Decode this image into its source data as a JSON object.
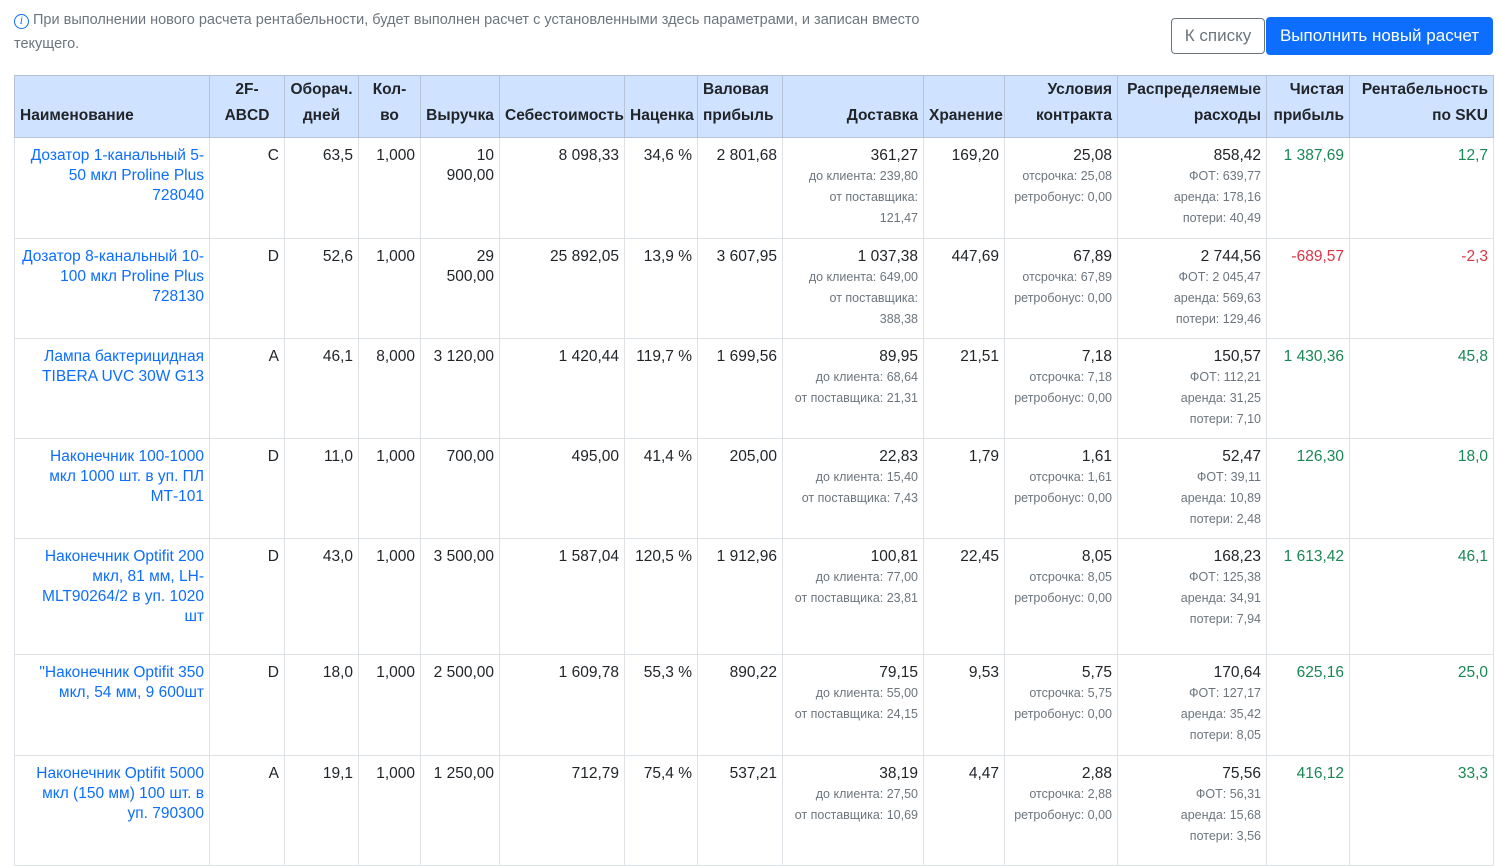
{
  "header": {
    "info_text": "При выполнении нового расчета рентабельности, будет выполнен расчет с установленными здесь параметрами, и записан вместо текущего.",
    "info_icon": "info-circle-icon",
    "btn_list": "К списку",
    "btn_run": "Выполнить новый расчет",
    "accent_color": "#0d6efd"
  },
  "columns": [
    "Наименование",
    "2F-ABCD",
    "Оборач. дней",
    "Кол-во",
    "Выручка",
    "Себестоимость",
    "Наценка",
    "Валовая прибыль",
    "Доставка",
    "Хранение",
    "Условия контракта",
    "Распределяемые расходы",
    "Чистая прибыль",
    "Рентабельность по SKU"
  ],
  "rows": [
    {
      "name": "Дозатор 1-канальный 5-50 мкл Proline Plus 728040",
      "abcd": "C",
      "turnover": "63,5",
      "qty": "1,000",
      "revenue": "10 900,00",
      "cost": "8 098,33",
      "markup": "34,6 %",
      "gross": "2 801,68",
      "delivery": "361,27",
      "delivery_client": "до клиента: 239,80",
      "delivery_supplier": "от поставщика: 121,47",
      "storage": "169,20",
      "contract": "25,08",
      "contract_delay": "отсрочка: 25,08",
      "contract_bonus": "ретробонус: 0,00",
      "dist": "858,42",
      "dist_fot": "ФОТ: 639,77",
      "dist_rent": "аренда: 178,16",
      "dist_loss": "потери: 40,49",
      "net": "1 387,69",
      "net_sign": "pos",
      "rent": "12,7"
    },
    {
      "name": "Дозатор 8-канальный 10-100 мкл Proline Plus 728130",
      "abcd": "D",
      "turnover": "52,6",
      "qty": "1,000",
      "revenue": "29 500,00",
      "cost": "25 892,05",
      "markup": "13,9 %",
      "gross": "3 607,95",
      "delivery": "1 037,38",
      "delivery_client": "до клиента: 649,00",
      "delivery_supplier": "от поставщика: 388,38",
      "storage": "447,69",
      "contract": "67,89",
      "contract_delay": "отсрочка: 67,89",
      "contract_bonus": "ретробонус: 0,00",
      "dist": "2 744,56",
      "dist_fot": "ФОТ: 2 045,47",
      "dist_rent": "аренда: 569,63",
      "dist_loss": "потери: 129,46",
      "net": "-689,57",
      "net_sign": "neg",
      "rent": "-2,3"
    },
    {
      "name": "Лампа бактерицидная TIBERA UVC 30W G13",
      "abcd": "A",
      "turnover": "46,1",
      "qty": "8,000",
      "revenue": "3 120,00",
      "cost": "1 420,44",
      "markup": "119,7 %",
      "gross": "1 699,56",
      "delivery": "89,95",
      "delivery_client": "до клиента: 68,64",
      "delivery_supplier": "от поставщика: 21,31",
      "storage": "21,51",
      "contract": "7,18",
      "contract_delay": "отсрочка: 7,18",
      "contract_bonus": "ретробонус: 0,00",
      "dist": "150,57",
      "dist_fot": "ФОТ: 112,21",
      "dist_rent": "аренда: 31,25",
      "dist_loss": "потери: 7,10",
      "net": "1 430,36",
      "net_sign": "pos",
      "rent": "45,8"
    },
    {
      "name": "Наконечник 100-1000 мкл 1000 шт. в уп. ПЛ МТ-101",
      "abcd": "D",
      "turnover": "11,0",
      "qty": "1,000",
      "revenue": "700,00",
      "cost": "495,00",
      "markup": "41,4 %",
      "gross": "205,00",
      "delivery": "22,83",
      "delivery_client": "до клиента: 15,40",
      "delivery_supplier": "от поставщика: 7,43",
      "storage": "1,79",
      "contract": "1,61",
      "contract_delay": "отсрочка: 1,61",
      "contract_bonus": "ретробонус: 0,00",
      "dist": "52,47",
      "dist_fot": "ФОТ: 39,11",
      "dist_rent": "аренда: 10,89",
      "dist_loss": "потери: 2,48",
      "net": "126,30",
      "net_sign": "pos",
      "rent": "18,0"
    },
    {
      "name": "Наконечник Optifit 200 мкл, 81 мм, LH-MLT90264/2 в уп. 1020 шт",
      "abcd": "D",
      "turnover": "43,0",
      "qty": "1,000",
      "revenue": "3 500,00",
      "cost": "1 587,04",
      "markup": "120,5 %",
      "gross": "1 912,96",
      "delivery": "100,81",
      "delivery_client": "до клиента: 77,00",
      "delivery_supplier": "от поставщика: 23,81",
      "storage": "22,45",
      "contract": "8,05",
      "contract_delay": "отсрочка: 8,05",
      "contract_bonus": "ретробонус: 0,00",
      "dist": "168,23",
      "dist_fot": "ФОТ: 125,38",
      "dist_rent": "аренда: 34,91",
      "dist_loss": "потери: 7,94",
      "net": "1 613,42",
      "net_sign": "pos",
      "rent": "46,1"
    },
    {
      "name": "\"Наконечник Optifit 350 мкл, 54 мм, 9 600шт",
      "abcd": "D",
      "turnover": "18,0",
      "qty": "1,000",
      "revenue": "2 500,00",
      "cost": "1 609,78",
      "markup": "55,3 %",
      "gross": "890,22",
      "delivery": "79,15",
      "delivery_client": "до клиента: 55,00",
      "delivery_supplier": "от поставщика: 24,15",
      "storage": "9,53",
      "contract": "5,75",
      "contract_delay": "отсрочка: 5,75",
      "contract_bonus": "ретробонус: 0,00",
      "dist": "170,64",
      "dist_fot": "ФОТ: 127,17",
      "dist_rent": "аренда: 35,42",
      "dist_loss": "потери: 8,05",
      "net": "625,16",
      "net_sign": "pos",
      "rent": "25,0"
    },
    {
      "name": "Наконечник Optifit 5000 мкл (150 мм) 100 шт. в уп. 790300",
      "abcd": "A",
      "turnover": "19,1",
      "qty": "1,000",
      "revenue": "1 250,00",
      "cost": "712,79",
      "markup": "75,4 %",
      "gross": "537,21",
      "delivery": "38,19",
      "delivery_client": "до клиента: 27,50",
      "delivery_supplier": "от поставщика: 10,69",
      "storage": "4,47",
      "contract": "2,88",
      "contract_delay": "отсрочка: 2,88",
      "contract_bonus": "ретробонус: 0,00",
      "dist": "75,56",
      "dist_fot": "ФОТ: 56,31",
      "dist_rent": "аренда: 15,68",
      "dist_loss": "потери: 3,56",
      "net": "416,12",
      "net_sign": "pos",
      "rent": "33,3"
    }
  ]
}
